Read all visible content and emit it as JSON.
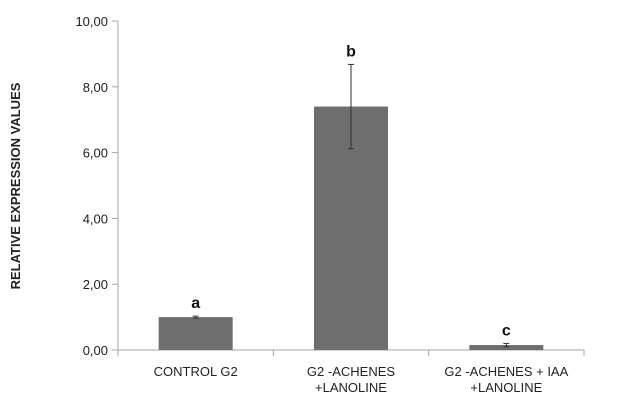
{
  "chart_data": {
    "type": "bar",
    "title": "",
    "xlabel": "",
    "ylabel": "RELATIVE EXPRESSION VALUES",
    "ylim": [
      0,
      10
    ],
    "ytick_values": [
      0,
      2,
      4,
      6,
      8,
      10
    ],
    "yticks": [
      "0,00",
      "2,00",
      "4,00",
      "6,00",
      "8,00",
      "10,00"
    ],
    "grid": false,
    "categories": [
      [
        "CONTROL G2"
      ],
      [
        "G2 -ACHENES",
        "+LANOLINE"
      ],
      [
        "G2 -ACHENES + IAA",
        "+LANOLINE"
      ]
    ],
    "values": [
      1.0,
      7.4,
      0.15
    ],
    "error": [
      0.03,
      1.28,
      0.05
    ],
    "significance_labels": [
      "a",
      "b",
      "c"
    ],
    "bar_color": "#6e6e6e",
    "axis_color": "#a6a6a6"
  }
}
